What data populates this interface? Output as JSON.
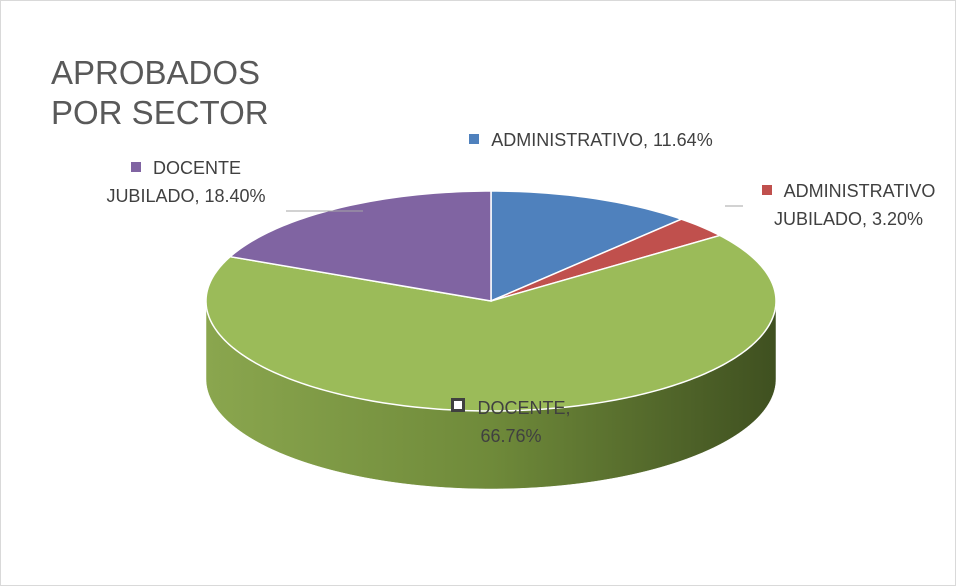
{
  "chart_data": {
    "type": "pie3d",
    "title": "APROBADOS POR SECTOR",
    "categories": [
      "ADMINISTRATIVO",
      "ADMINISTRATIVO JUBILADO",
      "DOCENTE",
      "DOCENTE JUBILADO"
    ],
    "values": [
      11.64,
      3.2,
      66.76,
      18.4
    ],
    "value_labels": [
      "11.64%",
      "3.20%",
      "66.76%",
      "18.40%"
    ],
    "colors": [
      "#4f81bd",
      "#c0504d",
      "#9bbb59",
      "#8064a2"
    ]
  }
}
